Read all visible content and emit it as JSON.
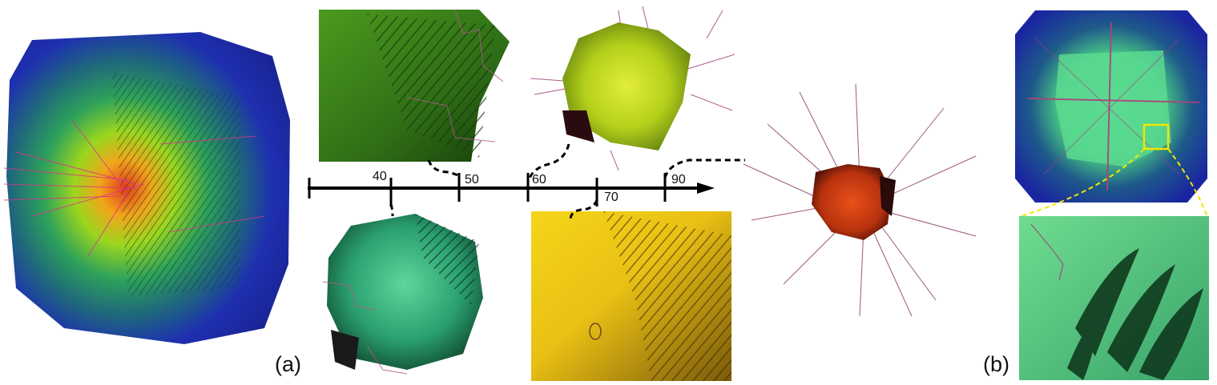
{
  "panels": {
    "a": {
      "label": "(a)"
    },
    "b": {
      "label": "(b)"
    }
  },
  "timeline": {
    "ticks": [
      {
        "value": "40"
      },
      {
        "value": "50"
      },
      {
        "value": "60"
      },
      {
        "value": "70"
      },
      {
        "value": "90"
      }
    ]
  },
  "colors": {
    "volume_blue": "#1f2fb8",
    "core_red": "#e0401a",
    "mesh_green": "#3f8f1e",
    "mesh_teal": "#2fb07a",
    "mesh_yellow": "#e8c21a",
    "lines_magenta": "#a0407a",
    "callout_yellow": "#f2e600",
    "axis_black": "#000000"
  },
  "icons": {
    "timeline_arrow": "arrow-right-icon"
  }
}
